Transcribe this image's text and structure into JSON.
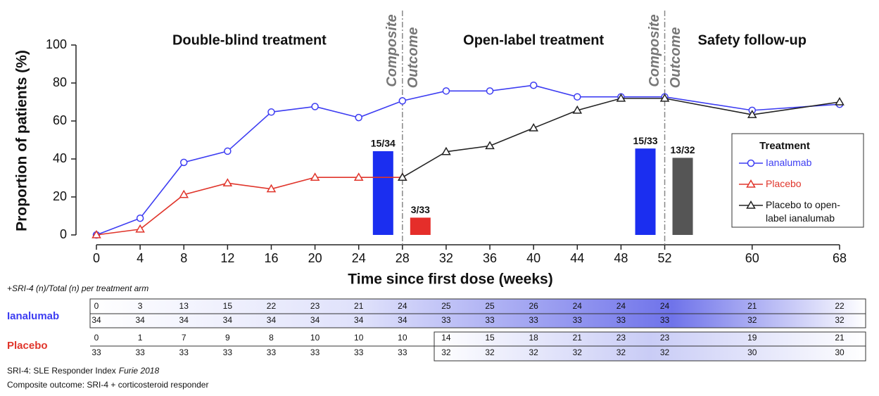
{
  "chart_data": {
    "type": "line",
    "x_label": "Time since first dose (weeks)",
    "y_label": "Proportion of patients (%)",
    "phases": [
      "Double-blind treatment",
      "Open-label treatment",
      "Safety follow-up"
    ],
    "x": [
      0,
      4,
      8,
      12,
      16,
      20,
      24,
      28,
      32,
      36,
      40,
      44,
      48,
      52,
      60,
      68
    ],
    "xlim": [
      0,
      68
    ],
    "xticks": [
      0,
      4,
      8,
      12,
      16,
      20,
      24,
      28,
      32,
      36,
      40,
      44,
      48,
      52,
      60,
      68
    ],
    "ylim": [
      0,
      100
    ],
    "yticks": [
      0,
      20,
      40,
      60,
      80,
      100
    ],
    "grid": false,
    "legend_title": "Treatment",
    "legend_position": "right",
    "series": [
      {
        "name": "Ianalumab",
        "color": "#3d3df2",
        "marker": "circle",
        "values": [
          0,
          8.8,
          38.2,
          44.1,
          64.7,
          67.6,
          61.8,
          70.6,
          75.8,
          75.8,
          78.8,
          72.7,
          72.7,
          72.7,
          65.6,
          68.8
        ]
      },
      {
        "name": "Placebo",
        "color": "#e0352b",
        "marker": "triangle",
        "values": [
          0,
          3.0,
          21.2,
          27.3,
          24.2,
          30.3,
          30.3,
          30.3,
          null,
          null,
          null,
          null,
          null,
          null,
          null,
          null
        ]
      },
      {
        "name": "Placebo to open-label ianalumab",
        "color": "#222222",
        "marker": "triangle",
        "values": [
          null,
          null,
          null,
          null,
          null,
          null,
          null,
          30.3,
          43.8,
          46.9,
          56.3,
          65.6,
          71.9,
          71.9,
          63.3,
          70.0
        ]
      }
    ],
    "endpoints": [
      {
        "x": 28,
        "labels": [
          "Composite",
          "Outcome"
        ],
        "bars": [
          {
            "value": 44.1,
            "label": "15/34",
            "color": "#1b2ef0"
          },
          {
            "value": 9.1,
            "label": "3/33",
            "color": "#e52e2a"
          }
        ]
      },
      {
        "x": 52,
        "labels": [
          "Composite",
          "Outcome"
        ],
        "bars": [
          {
            "value": 45.5,
            "label": "15/33",
            "color": "#1b2ef0"
          },
          {
            "value": 40.6,
            "label": "13/32",
            "color": "#555555"
          }
        ]
      }
    ]
  },
  "table": {
    "title": "+SRI-4 (n)/Total (n) per treatment arm",
    "rows": [
      {
        "label": "Ianalumab",
        "color": "#3d3df2",
        "responders": [
          0,
          3,
          13,
          15,
          22,
          23,
          21,
          24,
          25,
          25,
          26,
          24,
          24,
          24,
          21,
          22
        ],
        "totals": [
          34,
          34,
          34,
          34,
          34,
          34,
          34,
          34,
          33,
          33,
          33,
          33,
          33,
          33,
          32,
          32
        ]
      },
      {
        "label": "Placebo",
        "color": "#e0352b",
        "responders": [
          0,
          1,
          7,
          9,
          8,
          10,
          10,
          10,
          14,
          15,
          18,
          21,
          23,
          23,
          19,
          21
        ],
        "totals": [
          33,
          33,
          33,
          33,
          33,
          33,
          33,
          33,
          32,
          32,
          32,
          32,
          32,
          32,
          30,
          30
        ]
      }
    ]
  },
  "footnotes": [
    {
      "text": "SRI-4: SLE Responder Index",
      "cite": "Furie 2018"
    },
    {
      "text": "Composite outcome: SRI-4 + corticosteroid responder"
    }
  ]
}
